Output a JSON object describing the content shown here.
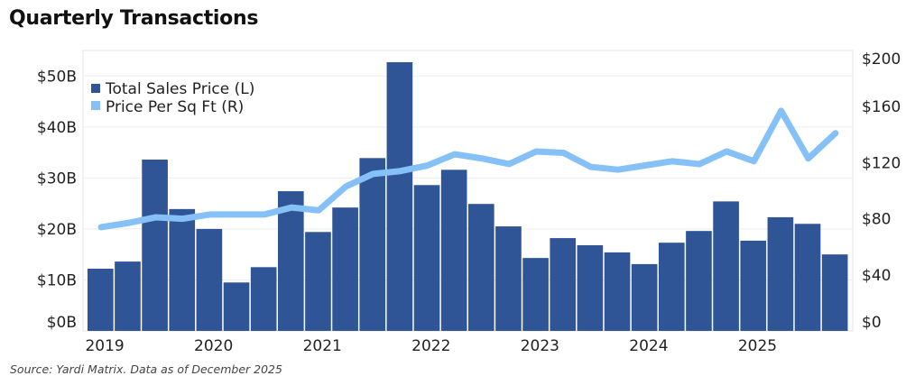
{
  "chart_data": {
    "type": "bar+line",
    "title": "Quarterly Transactions",
    "source": "Source: Yardi Matrix. Data as of December 2025",
    "x_tick_labels": [
      "2019",
      "2020",
      "2021",
      "2022",
      "2023",
      "2024",
      "2025"
    ],
    "categories": [
      "2019 Q1",
      "2019 Q2",
      "2019 Q3",
      "2019 Q4",
      "2020 Q1",
      "2020 Q2",
      "2020 Q3",
      "2020 Q4",
      "2021 Q1",
      "2021 Q2",
      "2021 Q3",
      "2021 Q4",
      "2022 Q1",
      "2022 Q2",
      "2022 Q3",
      "2022 Q4",
      "2023 Q1",
      "2023 Q2",
      "2023 Q3",
      "2023 Q4",
      "2024 Q1",
      "2024 Q2",
      "2024 Q3",
      "2024 Q4",
      "2025 Q1",
      "2025 Q2",
      "2025 Q3",
      "2025 Q4"
    ],
    "series": [
      {
        "name": "Total Sales Price (L)",
        "type": "bar",
        "axis": "left",
        "color": "#2f5597",
        "values": [
          12.2,
          13.6,
          33.6,
          23.9,
          20.0,
          9.5,
          12.5,
          27.4,
          19.4,
          24.2,
          33.9,
          52.7,
          28.6,
          31.6,
          24.9,
          20.5,
          14.3,
          18.2,
          16.8,
          15.4,
          13.1,
          17.3,
          19.6,
          25.4,
          17.7,
          22.3,
          21.0,
          15.0
        ]
      },
      {
        "name": "Price Per Sq Ft (R)",
        "type": "line",
        "axis": "right",
        "color": "#85c1f7",
        "values": [
          74,
          77,
          81,
          80,
          83,
          83,
          83,
          88,
          86,
          103,
          112,
          114,
          118,
          126,
          123,
          119,
          128,
          127,
          117,
          115,
          118,
          121,
          119,
          128,
          121,
          157,
          123,
          141
        ]
      }
    ],
    "left_axis": {
      "unit": "billions USD",
      "ylim": [
        0,
        55
      ],
      "ticks": [
        0,
        10,
        20,
        30,
        40,
        50
      ],
      "tick_labels": [
        "$0B",
        "$10B",
        "$20B",
        "$30B",
        "$40B",
        "$50B"
      ]
    },
    "right_axis": {
      "unit": "USD per sq ft",
      "ylim": [
        0,
        200
      ],
      "ticks": [
        0,
        40,
        80,
        120,
        160,
        200
      ],
      "tick_labels": [
        "$0",
        "$40",
        "$80",
        "$120",
        "$160",
        "$200"
      ]
    },
    "grid": true,
    "legend_placement": "top-left"
  }
}
